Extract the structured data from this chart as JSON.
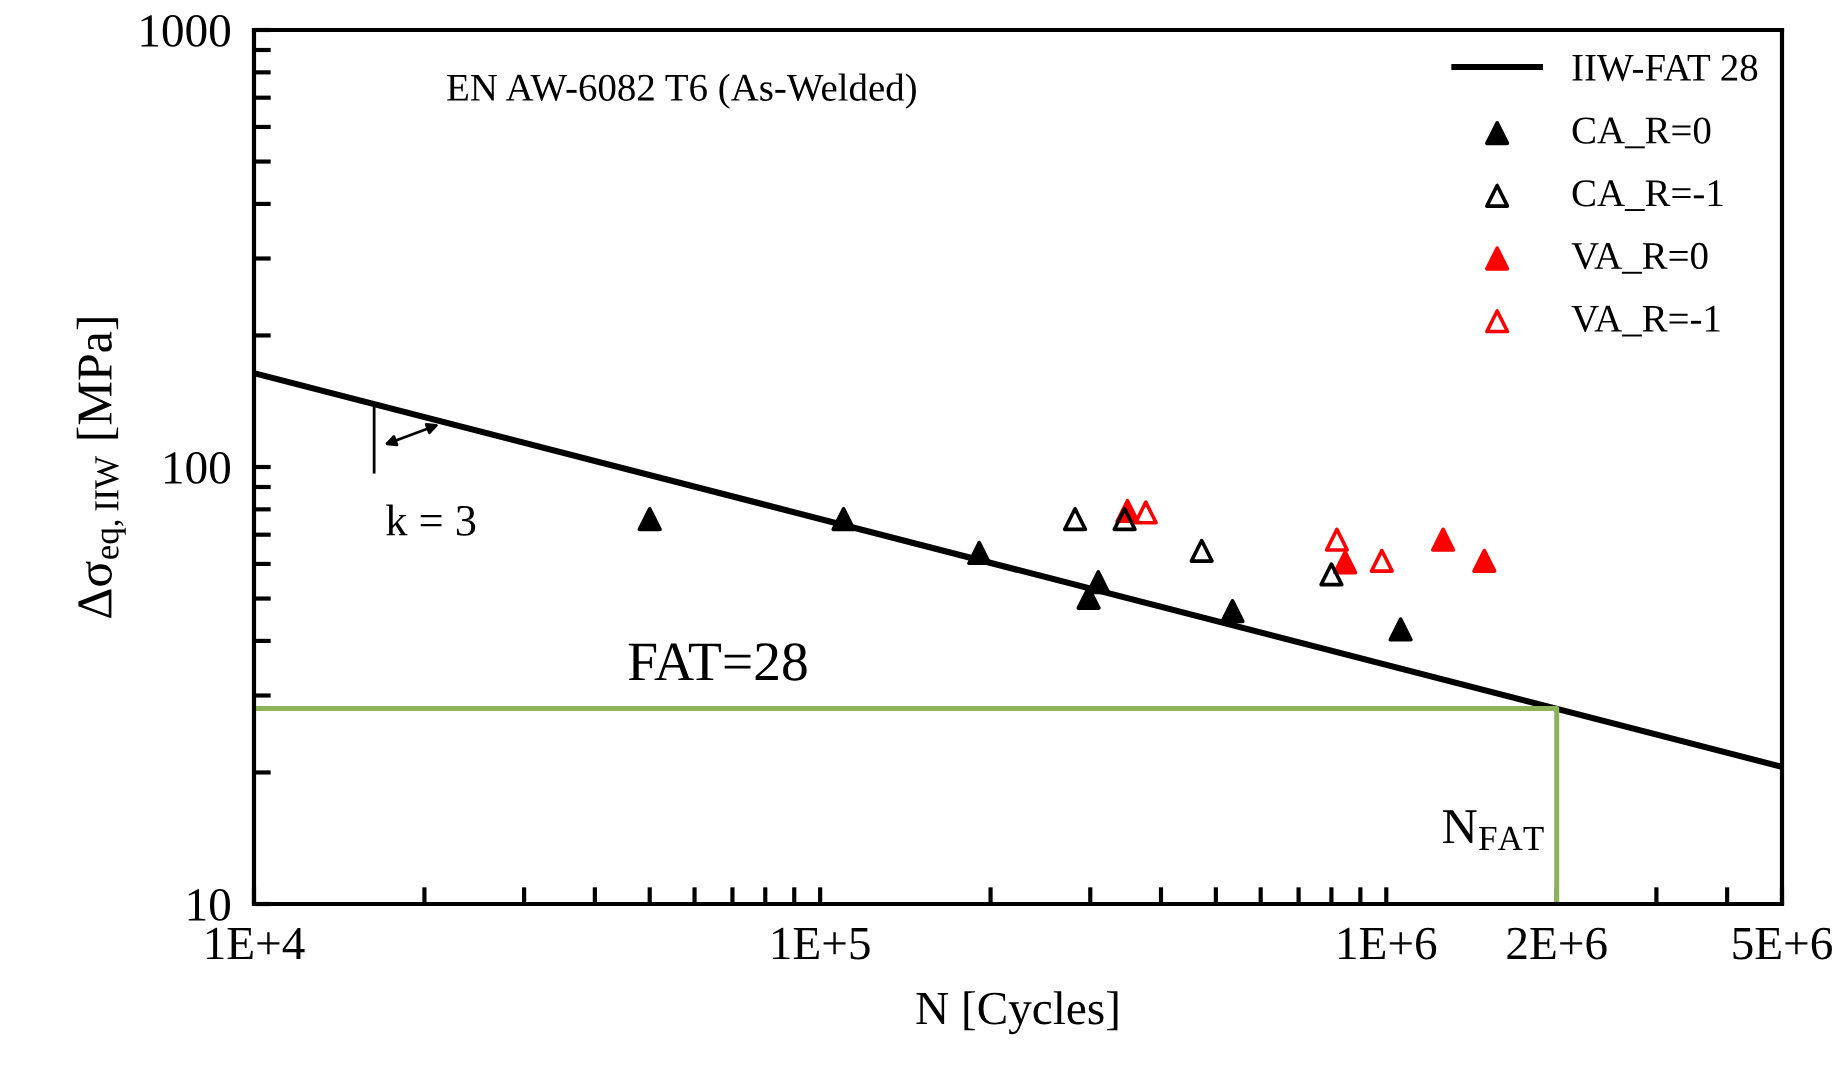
{
  "chart_data": {
    "type": "scatter",
    "title": "EN AW-6082 T6 (As-Welded)",
    "xlabel": "N [Cycles]",
    "ylabel": "Δσ$_{eq,IIW}$ [MPa]",
    "log": "xy",
    "grid": false,
    "legend": "top right",
    "xlim": [
      10000,
      5000000
    ],
    "ylim": [
      10,
      1000
    ],
    "xticks": [
      {
        "value": 10000,
        "label": "1E+4"
      },
      {
        "value": 20000,
        "label": null
      },
      {
        "value": 30000,
        "label": null
      },
      {
        "value": 40000,
        "label": null
      },
      {
        "value": 50000,
        "label": null
      },
      {
        "value": 60000,
        "label": null
      },
      {
        "value": 70000,
        "label": null
      },
      {
        "value": 80000,
        "label": null
      },
      {
        "value": 90000,
        "label": null
      },
      {
        "value": 100000,
        "label": "1E+5"
      },
      {
        "value": 200000,
        "label": null
      },
      {
        "value": 300000,
        "label": null
      },
      {
        "value": 400000,
        "label": null
      },
      {
        "value": 500000,
        "label": null
      },
      {
        "value": 600000,
        "label": null
      },
      {
        "value": 700000,
        "label": null
      },
      {
        "value": 800000,
        "label": null
      },
      {
        "value": 900000,
        "label": null
      },
      {
        "value": 1000000,
        "label": "1E+6"
      },
      {
        "value": 2000000,
        "label": "2E+6"
      },
      {
        "value": 3000000,
        "label": null
      },
      {
        "value": 4000000,
        "label": null
      },
      {
        "value": 5000000,
        "label": "5E+6"
      }
    ],
    "yticks": [
      10,
      {
        "value": 20,
        "label": null
      },
      {
        "value": 30,
        "label": null
      },
      {
        "value": 40,
        "label": null
      },
      {
        "value": 50,
        "label": null
      },
      {
        "value": 60,
        "label": null
      },
      {
        "value": 70,
        "label": null
      },
      {
        "value": 80,
        "label": null
      },
      {
        "value": 90,
        "label": null
      },
      100,
      {
        "value": 200,
        "label": null
      },
      {
        "value": 300,
        "label": null
      },
      {
        "value": 400,
        "label": null
      },
      {
        "value": 500,
        "label": null
      },
      {
        "value": 600,
        "label": null
      },
      {
        "value": 700,
        "label": null
      },
      {
        "value": 800,
        "label": null
      },
      {
        "value": 900,
        "label": null
      },
      1000
    ],
    "series": [
      {
        "name": "IIW-FAT 28",
        "type": "line",
        "color": "#000000",
        "marker": "none",
        "line_style": "solid",
        "x": [
          10000,
          5000000
        ],
        "values": [
          164,
          20.6
        ]
      },
      {
        "type": "line",
        "color": "#8db35a",
        "marker": "none",
        "line_style": "solid",
        "x": [
          10000,
          2000000,
          2000000
        ],
        "values": [
          28,
          28,
          10
        ]
      },
      {
        "name": "CA_R=0",
        "color": "#000000",
        "marker": "triangle",
        "x": [
          50000,
          110000,
          191000,
          310000,
          298000,
          535000,
          1060000
        ],
        "values": [
          76,
          76,
          63.6,
          54.5,
          50.2,
          46.8,
          42.5
        ]
      },
      {
        "name": "CA_R=-1",
        "color": "#000000",
        "marker": "triangle",
        "x": [
          282000,
          345000,
          472000,
          800000
        ],
        "values": [
          76,
          76,
          64.3,
          56.8
        ]
      },
      {
        "name": "VA_R=0",
        "color": "#ff0000",
        "marker": "triangle",
        "x": [
          349000,
          846000,
          1260000,
          1490000
        ],
        "values": [
          79.3,
          60.5,
          68.2,
          61
        ]
      },
      {
        "name": "VA_R=-1",
        "color": "#ff0000",
        "marker": "triangle",
        "x": [
          376000,
          818000,
          982000
        ],
        "values": [
          78.7,
          68.2,
          61
        ]
      }
    ],
    "annotations": [
      {
        "text": "FAT=28",
        "x": 66000,
        "y": 28
      },
      {
        "text": "N$_{FAT}$",
        "x": 2000000,
        "y": 10
      },
      {
        "text": "k = 3",
        "x": 16300,
        "y": 139
      }
    ]
  }
}
